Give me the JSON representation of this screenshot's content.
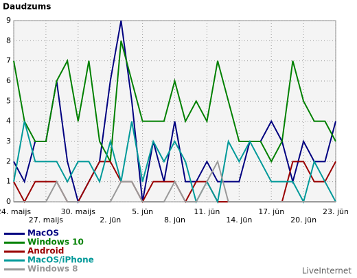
{
  "chart_data": {
    "type": "line",
    "title": "Daudzums",
    "watermark": "LiveInternet",
    "categories": [
      "24. maijs",
      null,
      null,
      "27. maijs",
      null,
      null,
      "30. maijs",
      null,
      null,
      "2. jūn",
      null,
      null,
      "5. jūn",
      null,
      null,
      "8. jūn",
      null,
      null,
      "11. jūn",
      null,
      null,
      "14. jūn",
      null,
      null,
      "17. jūn",
      null,
      null,
      "20. jūn",
      null,
      null,
      "23. jūn"
    ],
    "ylim": [
      0,
      9
    ],
    "yticks": [
      0,
      1,
      2,
      3,
      4,
      5,
      6,
      7,
      8,
      9
    ],
    "grid": true,
    "series": [
      {
        "name": "MacOS",
        "color": "#000080",
        "values": [
          2,
          1,
          3,
          3,
          6,
          2,
          0,
          1,
          2,
          6,
          9,
          5,
          0,
          3,
          1,
          4,
          1,
          1,
          2,
          1,
          1,
          1,
          3,
          3,
          4,
          3,
          1,
          3,
          2,
          2,
          4
        ]
      },
      {
        "name": "Windows 10",
        "color": "#008000",
        "values": [
          7,
          4,
          3,
          3,
          6,
          7,
          4,
          7,
          3,
          2,
          8,
          6,
          4,
          4,
          4,
          6,
          4,
          5,
          4,
          7,
          5,
          3,
          3,
          3,
          2,
          3,
          7,
          5,
          4,
          4,
          3
        ]
      },
      {
        "name": "Android",
        "color": "#990000",
        "values": [
          1,
          0,
          1,
          1,
          1,
          0,
          0,
          1,
          2,
          2,
          1,
          1,
          0,
          1,
          1,
          1,
          0,
          1,
          1,
          0,
          0,
          0,
          0,
          0,
          0,
          0,
          2,
          2,
          1,
          1,
          2
        ]
      },
      {
        "name": "MacOS/iPhone",
        "color": "#009999",
        "values": [
          1,
          4,
          2,
          2,
          2,
          1,
          2,
          2,
          1,
          3,
          1,
          4,
          1,
          3,
          2,
          3,
          2,
          0,
          1,
          0,
          3,
          2,
          3,
          2,
          1,
          1,
          1,
          0,
          2,
          1,
          0
        ]
      },
      {
        "name": "Windows 8",
        "color": "#999999",
        "values": [
          0,
          0,
          0,
          0,
          1,
          0,
          0,
          0,
          0,
          0,
          1,
          1,
          0,
          0,
          0,
          1,
          0,
          0,
          1,
          2,
          0,
          0,
          0,
          0,
          0,
          0,
          0,
          0,
          0,
          0,
          0
        ]
      }
    ]
  }
}
